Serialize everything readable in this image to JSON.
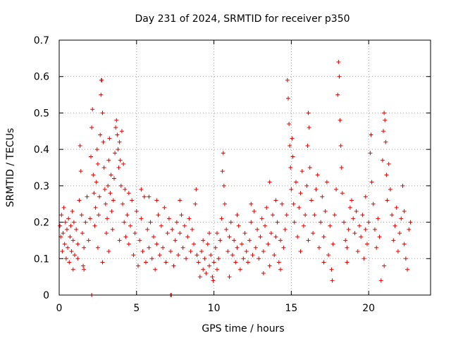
{
  "chart_data": {
    "type": "scatter",
    "title": "Day 231 of 2024, SRMTID for receiver p350",
    "xlabel": "GPS time / hours",
    "ylabel": "SRMTID / TECUs",
    "xlim": [
      0,
      24
    ],
    "ylim": [
      0,
      0.7
    ],
    "x_ticks": [
      0,
      5,
      10,
      15,
      20
    ],
    "x_tick_labels": [
      "0",
      "5",
      "10",
      "15",
      "20"
    ],
    "y_ticks": [
      0,
      0.1,
      0.2,
      0.3,
      0.4,
      0.5,
      0.6,
      0.7
    ],
    "y_tick_labels": [
      "0",
      "0.1",
      "0.2",
      "0.3",
      "0.4",
      "0.5",
      "0.6",
      "0.7"
    ],
    "grid": true,
    "marker": "plus",
    "color": "#e00000",
    "series": [
      {
        "name": "SRMTID",
        "points": [
          [
            0.05,
            0.19
          ],
          [
            0.1,
            0.16
          ],
          [
            0.15,
            0.22
          ],
          [
            0.2,
            0.12
          ],
          [
            0.25,
            0.17
          ],
          [
            0.3,
            0.24
          ],
          [
            0.35,
            0.14
          ],
          [
            0.4,
            0.2
          ],
          [
            0.45,
            0.1
          ],
          [
            0.5,
            0.18
          ],
          [
            0.55,
            0.13
          ],
          [
            0.6,
            0.21
          ],
          [
            0.65,
            0.09
          ],
          [
            0.7,
            0.16
          ],
          [
            0.75,
            0.19
          ],
          [
            0.8,
            0.12
          ],
          [
            0.85,
            0.23
          ],
          [
            0.9,
            0.15
          ],
          [
            0.95,
            0.2
          ],
          [
            1.0,
            0.11
          ],
          [
            1.1,
            0.18
          ],
          [
            1.2,
            0.14
          ],
          [
            1.3,
            0.26
          ],
          [
            1.35,
            0.41
          ],
          [
            1.4,
            0.34
          ],
          [
            1.45,
            0.22
          ],
          [
            1.5,
            0.17
          ],
          [
            1.55,
            0.08
          ],
          [
            1.6,
            0.13
          ],
          [
            1.7,
            0.2
          ],
          [
            1.8,
            0.27
          ],
          [
            1.9,
            0.15
          ],
          [
            2.0,
            0.21
          ],
          [
            2.05,
            0.38
          ],
          [
            2.1,
            0.46
          ],
          [
            2.15,
            0.51
          ],
          [
            2.2,
            0.33
          ],
          [
            2.25,
            0.28
          ],
          [
            2.3,
            0.19
          ],
          [
            2.35,
            0.24
          ],
          [
            2.4,
            0.31
          ],
          [
            2.45,
            0.4
          ],
          [
            2.5,
            0.36
          ],
          [
            2.55,
            0.22
          ],
          [
            2.6,
            0.27
          ],
          [
            2.65,
            0.44
          ],
          [
            2.7,
            0.55
          ],
          [
            2.72,
            0.59
          ],
          [
            2.75,
            0.59
          ],
          [
            2.8,
            0.5
          ],
          [
            2.85,
            0.42
          ],
          [
            2.9,
            0.35
          ],
          [
            2.95,
            0.29
          ],
          [
            3.0,
            0.25
          ],
          [
            3.05,
            0.17
          ],
          [
            3.1,
            0.21
          ],
          [
            3.15,
            0.3
          ],
          [
            3.2,
            0.37
          ],
          [
            3.25,
            0.43
          ],
          [
            3.3,
            0.28
          ],
          [
            3.35,
            0.33
          ],
          [
            3.4,
            0.23
          ],
          [
            3.45,
            0.18
          ],
          [
            3.5,
            0.26
          ],
          [
            3.55,
            0.32
          ],
          [
            3.6,
            0.39
          ],
          [
            3.65,
            0.46
          ],
          [
            3.7,
            0.48
          ],
          [
            3.75,
            0.44
          ],
          [
            3.8,
            0.4
          ],
          [
            3.85,
            0.35
          ],
          [
            3.9,
            0.42
          ],
          [
            3.95,
            0.37
          ],
          [
            4.0,
            0.3
          ],
          [
            4.05,
            0.45
          ],
          [
            4.1,
            0.25
          ],
          [
            4.15,
            0.36
          ],
          [
            4.2,
            0.2
          ],
          [
            4.25,
            0.29
          ],
          [
            4.3,
            0.16
          ],
          [
            2.8,
            0.09
          ],
          [
            2.1,
            0.0
          ],
          [
            0.9,
            0.07
          ],
          [
            1.6,
            0.07
          ],
          [
            3.2,
            0.12
          ],
          [
            2.5,
            0.13
          ],
          [
            1.2,
            0.1
          ],
          [
            3.9,
            0.15
          ],
          [
            4.4,
            0.22
          ],
          [
            4.5,
            0.14
          ],
          [
            4.6,
            0.19
          ],
          [
            4.7,
            0.26
          ],
          [
            4.8,
            0.11
          ],
          [
            4.9,
            0.17
          ],
          [
            5.0,
            0.23
          ],
          [
            5.1,
            0.08
          ],
          [
            5.2,
            0.15
          ],
          [
            5.3,
            0.21
          ],
          [
            5.4,
            0.12
          ],
          [
            5.5,
            0.27
          ],
          [
            5.6,
            0.09
          ],
          [
            5.7,
            0.18
          ],
          [
            5.8,
            0.13
          ],
          [
            5.9,
            0.2
          ],
          [
            6.0,
            0.1
          ],
          [
            6.1,
            0.16
          ],
          [
            6.2,
            0.07
          ],
          [
            6.3,
            0.14
          ],
          [
            6.4,
            0.22
          ],
          [
            6.5,
            0.11
          ],
          [
            6.6,
            0.19
          ],
          [
            6.7,
            0.13
          ],
          [
            6.8,
            0.24
          ],
          [
            6.9,
            0.09
          ],
          [
            7.0,
            0.17
          ],
          [
            7.1,
            0.21
          ],
          [
            7.2,
            0.12
          ],
          [
            7.3,
            0.18
          ],
          [
            7.4,
            0.08
          ],
          [
            7.5,
            0.15
          ],
          [
            7.6,
            0.2
          ],
          [
            7.7,
            0.11
          ],
          [
            7.8,
            0.17
          ],
          [
            7.9,
            0.22
          ],
          [
            8.0,
            0.13
          ],
          [
            8.1,
            0.19
          ],
          [
            8.2,
            0.1
          ],
          [
            8.3,
            0.16
          ],
          [
            8.4,
            0.21
          ],
          [
            8.5,
            0.12
          ],
          [
            8.6,
            0.18
          ],
          [
            8.7,
            0.14
          ],
          [
            8.8,
            0.25
          ],
          [
            8.85,
            0.29
          ],
          [
            8.9,
            0.11
          ],
          [
            5.3,
            0.29
          ],
          [
            4.5,
            0.28
          ],
          [
            6.3,
            0.26
          ],
          [
            7.8,
            0.26
          ],
          [
            5.8,
            0.27
          ],
          [
            7.2,
            0.0
          ],
          [
            7.25,
            0.0
          ],
          [
            9.0,
            0.09
          ],
          [
            9.1,
            0.05
          ],
          [
            9.2,
            0.12
          ],
          [
            9.3,
            0.07
          ],
          [
            9.4,
            0.1
          ],
          [
            9.5,
            0.06
          ],
          [
            9.6,
            0.14
          ],
          [
            9.7,
            0.08
          ],
          [
            9.8,
            0.11
          ],
          [
            9.9,
            0.05
          ],
          [
            10.0,
            0.09
          ],
          [
            10.1,
            0.13
          ],
          [
            10.2,
            0.07
          ],
          [
            10.3,
            0.1
          ],
          [
            10.4,
            0.15
          ],
          [
            10.5,
            0.21
          ],
          [
            10.55,
            0.34
          ],
          [
            10.6,
            0.39
          ],
          [
            10.65,
            0.3
          ],
          [
            10.7,
            0.25
          ],
          [
            10.8,
            0.18
          ],
          [
            10.9,
            0.12
          ],
          [
            11.0,
            0.16
          ],
          [
            11.1,
            0.2
          ],
          [
            11.2,
            0.11
          ],
          [
            11.3,
            0.15
          ],
          [
            11.4,
            0.09
          ],
          [
            11.5,
            0.13
          ],
          [
            11.6,
            0.19
          ],
          [
            11.7,
            0.07
          ],
          [
            11.8,
            0.14
          ],
          [
            11.9,
            0.1
          ],
          [
            12.0,
            0.17
          ],
          [
            12.1,
            0.12
          ],
          [
            12.2,
            0.09
          ],
          [
            12.3,
            0.15
          ],
          [
            12.4,
            0.2
          ],
          [
            12.5,
            0.11
          ],
          [
            12.6,
            0.23
          ],
          [
            12.7,
            0.13
          ],
          [
            9.7,
            0.17
          ],
          [
            9.3,
            0.15
          ],
          [
            10.2,
            0.17
          ],
          [
            11.5,
            0.22
          ],
          [
            12.4,
            0.25
          ],
          [
            9.95,
            0.04
          ],
          [
            11.0,
            0.05
          ],
          [
            12.8,
            0.18
          ],
          [
            12.9,
            0.1
          ],
          [
            13.0,
            0.16
          ],
          [
            13.1,
            0.21
          ],
          [
            13.2,
            0.12
          ],
          [
            13.3,
            0.19
          ],
          [
            13.4,
            0.24
          ],
          [
            13.5,
            0.14
          ],
          [
            13.6,
            0.08
          ],
          [
            13.7,
            0.17
          ],
          [
            13.8,
            0.22
          ],
          [
            13.9,
            0.11
          ],
          [
            14.0,
            0.16
          ],
          [
            14.1,
            0.2
          ],
          [
            14.2,
            0.09
          ],
          [
            14.3,
            0.15
          ],
          [
            14.4,
            0.25
          ],
          [
            14.5,
            0.13
          ],
          [
            14.6,
            0.18
          ],
          [
            14.7,
            0.22
          ],
          [
            13.6,
            0.31
          ],
          [
            14.0,
            0.26
          ],
          [
            13.2,
            0.06
          ],
          [
            14.3,
            0.07
          ],
          [
            14.75,
            0.59
          ],
          [
            14.8,
            0.54
          ],
          [
            14.85,
            0.47
          ],
          [
            14.9,
            0.41
          ],
          [
            14.95,
            0.35
          ],
          [
            15.0,
            0.29
          ],
          [
            15.05,
            0.43
          ],
          [
            15.1,
            0.38
          ],
          [
            15.15,
            0.25
          ],
          [
            15.2,
            0.2
          ],
          [
            15.3,
            0.31
          ],
          [
            15.4,
            0.16
          ],
          [
            15.5,
            0.24
          ],
          [
            15.6,
            0.28
          ],
          [
            15.7,
            0.34
          ],
          [
            15.8,
            0.19
          ],
          [
            15.9,
            0.22
          ],
          [
            16.0,
            0.3
          ],
          [
            16.05,
            0.41
          ],
          [
            16.1,
            0.5
          ],
          [
            16.15,
            0.46
          ],
          [
            16.2,
            0.35
          ],
          [
            16.3,
            0.26
          ],
          [
            16.4,
            0.17
          ],
          [
            16.5,
            0.22
          ],
          [
            16.6,
            0.29
          ],
          [
            16.7,
            0.33
          ],
          [
            16.8,
            0.13
          ],
          [
            16.9,
            0.2
          ],
          [
            17.0,
            0.27
          ],
          [
            17.1,
            0.16
          ],
          [
            17.2,
            0.23
          ],
          [
            17.3,
            0.31
          ],
          [
            17.4,
            0.11
          ],
          [
            17.5,
            0.19
          ],
          [
            17.6,
            0.07
          ],
          [
            17.65,
            0.04
          ],
          [
            17.7,
            0.14
          ],
          [
            17.8,
            0.22
          ],
          [
            17.9,
            0.29
          ],
          [
            18.0,
            0.55
          ],
          [
            18.05,
            0.64
          ],
          [
            18.1,
            0.6
          ],
          [
            18.15,
            0.48
          ],
          [
            18.2,
            0.41
          ],
          [
            18.25,
            0.35
          ],
          [
            18.3,
            0.28
          ],
          [
            18.4,
            0.2
          ],
          [
            18.5,
            0.15
          ],
          [
            18.6,
            0.09
          ],
          [
            18.7,
            0.18
          ],
          [
            18.8,
            0.24
          ],
          [
            18.9,
            0.26
          ],
          [
            19.0,
            0.21
          ],
          [
            19.1,
            0.17
          ],
          [
            19.2,
            0.23
          ],
          [
            19.3,
            0.12
          ],
          [
            19.4,
            0.19
          ],
          [
            19.5,
            0.16
          ],
          [
            19.6,
            0.22
          ],
          [
            19.7,
            0.1
          ],
          [
            19.8,
            0.18
          ],
          [
            19.9,
            0.14
          ],
          [
            20.0,
            0.2
          ],
          [
            20.1,
            0.39
          ],
          [
            20.15,
            0.44
          ],
          [
            20.2,
            0.31
          ],
          [
            20.3,
            0.25
          ],
          [
            20.4,
            0.18
          ],
          [
            20.5,
            0.13
          ],
          [
            20.6,
            0.21
          ],
          [
            20.7,
            0.16
          ],
          [
            20.8,
            0.04
          ],
          [
            20.9,
            0.37
          ],
          [
            20.95,
            0.45
          ],
          [
            21.0,
            0.5
          ],
          [
            21.05,
            0.48
          ],
          [
            21.1,
            0.42
          ],
          [
            21.15,
            0.33
          ],
          [
            21.2,
            0.26
          ],
          [
            21.3,
            0.36
          ],
          [
            21.4,
            0.29
          ],
          [
            21.5,
            0.22
          ],
          [
            21.6,
            0.15
          ],
          [
            21.7,
            0.19
          ],
          [
            21.8,
            0.24
          ],
          [
            21.9,
            0.12
          ],
          [
            22.0,
            0.17
          ],
          [
            22.1,
            0.21
          ],
          [
            22.2,
            0.3
          ],
          [
            22.3,
            0.14
          ],
          [
            22.4,
            0.1
          ],
          [
            22.5,
            0.07
          ],
          [
            22.6,
            0.18
          ],
          [
            22.7,
            0.2
          ],
          [
            16.1,
            0.15
          ],
          [
            17.1,
            0.09
          ],
          [
            18.6,
            0.13
          ],
          [
            19.8,
            0.27
          ],
          [
            15.6,
            0.12
          ],
          [
            21.0,
            0.08
          ],
          [
            22.3,
            0.23
          ]
        ]
      }
    ]
  }
}
